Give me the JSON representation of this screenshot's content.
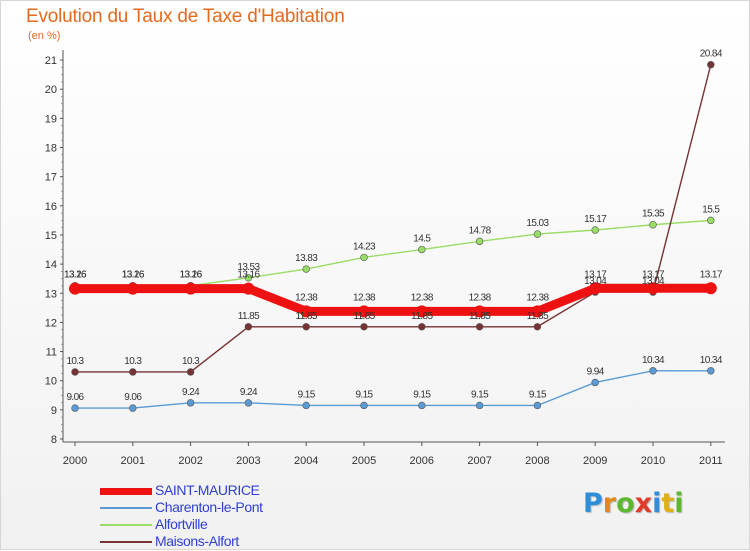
{
  "header": {
    "title": "Evolution du Taux de Taxe d'Habitation",
    "unit": "(en %)"
  },
  "chart_data": {
    "type": "line",
    "title": "Evolution du Taux de Taxe d'Habitation",
    "ylabel": "(en %)",
    "xlabel": "",
    "categories": [
      "2000",
      "2001",
      "2002",
      "2003",
      "2004",
      "2005",
      "2006",
      "2007",
      "2008",
      "2009",
      "2010",
      "2011"
    ],
    "ylim": [
      8,
      21
    ],
    "yticks": [
      "8",
      "9",
      "10",
      "11",
      "12",
      "13",
      "14",
      "15",
      "16",
      "17",
      "18",
      "19",
      "20",
      "21"
    ],
    "grid": false,
    "legend_position": "bottom-left",
    "series": [
      {
        "name": "SAINT-MAURICE",
        "color": "#ee1111",
        "values": [
          13.16,
          13.16,
          13.16,
          13.16,
          12.38,
          12.38,
          12.38,
          12.38,
          12.38,
          13.17,
          13.17,
          13.17
        ],
        "labels": [
          "13.16",
          "13.16",
          "13.16",
          "13.16",
          "12.38",
          "12.38",
          "12.38",
          "12.38",
          "12.38",
          "13.17",
          "13.17",
          "13.17"
        ]
      },
      {
        "name": "Charenton-le-Pont",
        "color": "#5b9bd5",
        "values": [
          9.06,
          9.06,
          9.24,
          9.24,
          9.15,
          9.15,
          9.15,
          9.15,
          9.15,
          9.94,
          10.34,
          10.34
        ],
        "labels": [
          "9.06",
          "9.06",
          "9.24",
          "9.24",
          "9.15",
          "9.15",
          "9.15",
          "9.15",
          "9.15",
          "9.94",
          "10.34",
          "10.34"
        ]
      },
      {
        "name": "Alfortville",
        "color": "#99dd66",
        "values": [
          13.26,
          13.26,
          13.26,
          13.53,
          13.83,
          14.23,
          14.5,
          14.78,
          15.03,
          15.17,
          15.35,
          15.5
        ],
        "labels": [
          "13.26",
          "13.26",
          "13.26",
          "13.53",
          "13.83",
          "14.23",
          "14.5",
          "14.78",
          "15.03",
          "15.17",
          "15.35",
          "15.5"
        ]
      },
      {
        "name": "Maisons-Alfort",
        "color": "#773333",
        "values": [
          10.3,
          10.3,
          10.3,
          11.85,
          11.85,
          11.85,
          11.85,
          11.85,
          11.85,
          13.04,
          13.04,
          20.84
        ],
        "labels": [
          "10.3",
          "10.3",
          "10.3",
          "11.85",
          "11.85",
          "11.85",
          "11.85",
          "11.85",
          "11.85",
          "13.04",
          "13.04",
          "20.84"
        ]
      }
    ]
  },
  "legend": {
    "items": [
      {
        "label": "SAINT-MAURICE",
        "color": "#ee1111",
        "weight": "thick"
      },
      {
        "label": "Charenton-le-Pont",
        "color": "#5b9bd5",
        "weight": "thin"
      },
      {
        "label": "Alfortville",
        "color": "#99dd66",
        "weight": "thin"
      },
      {
        "label": "Maisons-Alfort",
        "color": "#773333",
        "weight": "thin"
      }
    ]
  },
  "logo": {
    "text": "Proxiti",
    "letters": [
      {
        "ch": "P",
        "color": "#2e8fd8"
      },
      {
        "ch": "r",
        "color": "#e08a1a"
      },
      {
        "ch": "o",
        "color": "#5cb82e"
      },
      {
        "ch": "x",
        "color": "#e03a2a"
      },
      {
        "ch": "i",
        "color": "#2e8fd8"
      },
      {
        "ch": "t",
        "color": "#e0b01a"
      },
      {
        "ch": "i",
        "color": "#5cb82e"
      }
    ]
  }
}
